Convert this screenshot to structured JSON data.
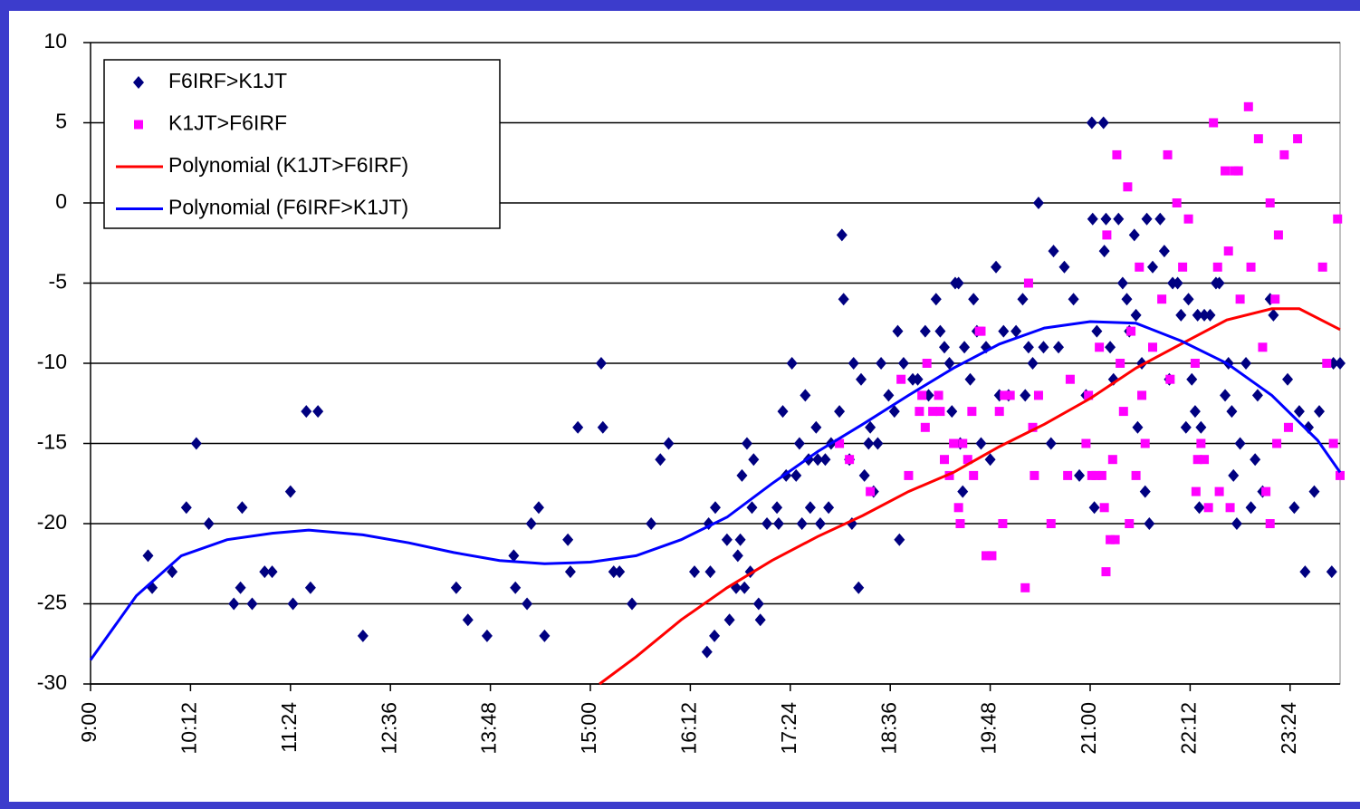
{
  "chart_data": {
    "type": "scatter",
    "xlim": [
      9,
      24
    ],
    "ylim": [
      -30,
      10
    ],
    "xticks": [
      {
        "value": 9,
        "label": "9:00"
      },
      {
        "value": 10.2,
        "label": "10:12"
      },
      {
        "value": 11.4,
        "label": "11:24"
      },
      {
        "value": 12.6,
        "label": "12:36"
      },
      {
        "value": 13.8,
        "label": "13:48"
      },
      {
        "value": 15,
        "label": "15:00"
      },
      {
        "value": 16.2,
        "label": "16:12"
      },
      {
        "value": 17.4,
        "label": "17:24"
      },
      {
        "value": 18.6,
        "label": "18:36"
      },
      {
        "value": 19.8,
        "label": "19:48"
      },
      {
        "value": 21,
        "label": "21:00"
      },
      {
        "value": 22.2,
        "label": "22:12"
      },
      {
        "value": 23.4,
        "label": "23:24"
      }
    ],
    "yticks": [
      -30,
      -25,
      -20,
      -15,
      -10,
      -5,
      0,
      5,
      10
    ],
    "grid": true,
    "legend": "top-left",
    "series": [
      {
        "name": "F6IRF>K1JT",
        "type": "scatter",
        "marker": "diamond",
        "color": "#000080",
        "x": [
          9.69,
          9.74,
          9.98,
          10.15,
          10.27,
          10.42,
          10.72,
          10.8,
          10.82,
          10.94,
          11.09,
          11.18,
          11.4,
          11.43,
          11.59,
          11.64,
          11.73,
          12.27,
          13.39,
          13.53,
          13.76,
          14.08,
          14.1,
          14.24,
          14.29,
          14.38,
          14.45,
          14.73,
          14.76,
          14.85,
          15.13,
          15.15,
          15.28,
          15.35,
          15.5,
          15.73,
          15.84,
          15.94,
          16.25,
          16.4,
          16.42,
          16.44,
          16.49,
          16.5,
          16.64,
          16.67,
          16.75,
          16.77,
          16.8,
          16.82,
          16.85,
          16.88,
          16.92,
          16.94,
          16.96,
          17.02,
          17.04,
          17.12,
          17.24,
          17.26,
          17.31,
          17.35,
          17.42,
          17.47,
          17.51,
          17.54,
          17.58,
          17.62,
          17.64,
          17.71,
          17.73,
          17.76,
          17.82,
          17.86,
          17.89,
          17.99,
          18.02,
          18.04,
          18.11,
          18.14,
          18.16,
          18.22,
          18.25,
          18.29,
          18.34,
          18.36,
          18.4,
          18.45,
          18.49,
          18.58,
          18.65,
          18.69,
          18.71,
          18.76,
          18.87,
          18.93,
          19.02,
          19.06,
          19.15,
          19.2,
          19.25,
          19.31,
          19.34,
          19.38,
          19.42,
          19.44,
          19.47,
          19.49,
          19.56,
          19.6,
          19.64,
          19.69,
          19.75,
          19.8,
          19.87,
          19.91,
          19.96,
          20.02,
          20.11,
          20.19,
          20.22,
          20.26,
          20.31,
          20.38,
          20.44,
          20.53,
          20.56,
          20.62,
          20.69,
          20.8,
          20.87,
          20.95,
          21.02,
          21.03,
          21.05,
          21.08,
          21.16,
          21.17,
          21.19,
          21.24,
          21.28,
          21.34,
          21.39,
          21.44,
          21.47,
          21.53,
          21.55,
          21.57,
          21.62,
          21.66,
          21.68,
          21.71,
          21.75,
          21.84,
          21.89,
          21.95,
          21.99,
          22.05,
          22.09,
          22.15,
          22.18,
          22.22,
          22.26,
          22.29,
          22.31,
          22.33,
          22.37,
          22.44,
          22.51,
          22.55,
          22.62,
          22.66,
          22.7,
          22.72,
          22.76,
          22.8,
          22.87,
          22.93,
          22.98,
          23.01,
          23.07,
          23.16,
          23.2,
          23.37,
          23.45,
          23.51,
          23.58,
          23.62,
          23.69,
          23.75,
          23.9,
          23.92,
          24.0
        ],
        "values": [
          -22,
          -24,
          -23,
          -19,
          -15,
          -20,
          -25,
          -24,
          -19,
          -25,
          -23,
          -23,
          -18,
          -25,
          -13,
          -24,
          -13,
          -27,
          -24,
          -26,
          -27,
          -22,
          -24,
          -25,
          -20,
          -19,
          -27,
          -21,
          -23,
          -14,
          -10,
          -14,
          -23,
          -23,
          -25,
          -20,
          -16,
          -15,
          -23,
          -28,
          -20,
          -23,
          -27,
          -19,
          -21,
          -26,
          -24,
          -22,
          -21,
          -17,
          -24,
          -15,
          -23,
          -19,
          -16,
          -25,
          -26,
          -20,
          -19,
          -20,
          -13,
          -17,
          -10,
          -17,
          -15,
          -20,
          -12,
          -16,
          -19,
          -14,
          -16,
          -20,
          -16,
          -19,
          -15,
          -13,
          -2,
          -6,
          -16,
          -20,
          -10,
          -24,
          -11,
          -17,
          -15,
          -14,
          -18,
          -15,
          -10,
          -12,
          -13,
          -8,
          -21,
          -10,
          -11,
          -11,
          -8,
          -12,
          -6,
          -8,
          -9,
          -10,
          -13,
          -5,
          -5,
          -15,
          -18,
          -9,
          -11,
          -6,
          -8,
          -15,
          -9,
          -16,
          -4,
          -12,
          -8,
          -12,
          -8,
          -6,
          -12,
          -9,
          -10,
          0,
          -9,
          -15,
          -3,
          -9,
          -4,
          -6,
          -17,
          -12,
          5,
          -1,
          -19,
          -8,
          5,
          -3,
          -1,
          -9,
          -11,
          -1,
          -5,
          -6,
          -8,
          -2,
          -7,
          -14,
          -10,
          -18,
          -1,
          -20,
          -4,
          -1,
          -3,
          -11,
          -5,
          -5,
          -7,
          -14,
          -6,
          -11,
          -13,
          -7,
          -19,
          -14,
          -7,
          -7,
          -5,
          -5,
          -12,
          -10,
          -13,
          -17,
          -20,
          -15,
          -10,
          -19,
          -16,
          -12,
          -18,
          -6,
          -7,
          -11,
          -19,
          -13,
          -23,
          -14,
          -18,
          -13,
          -23,
          -10,
          -10
        ]
      },
      {
        "name": "K1JT>F6IRF",
        "type": "scatter",
        "marker": "square",
        "color": "#ff00ff",
        "x": [
          17.99,
          18.11,
          18.36,
          18.73,
          18.82,
          18.95,
          18.98,
          19.02,
          19.04,
          19.11,
          19.18,
          19.2,
          19.25,
          19.31,
          19.36,
          19.42,
          19.44,
          19.47,
          19.53,
          19.58,
          19.6,
          19.67,
          19.69,
          19.75,
          19.82,
          19.91,
          19.95,
          19.97,
          20.04,
          20.22,
          20.26,
          20.31,
          20.33,
          20.38,
          20.53,
          20.73,
          20.76,
          20.95,
          20.98,
          21.02,
          21.07,
          21.11,
          21.14,
          21.17,
          21.19,
          21.2,
          21.24,
          21.27,
          21.3,
          21.32,
          21.36,
          21.4,
          21.45,
          21.47,
          21.49,
          21.55,
          21.59,
          21.62,
          21.66,
          21.75,
          21.86,
          21.93,
          21.96,
          22.04,
          22.11,
          22.18,
          22.26,
          22.27,
          22.29,
          22.33,
          22.37,
          22.42,
          22.48,
          22.53,
          22.55,
          22.62,
          22.66,
          22.68,
          22.73,
          22.78,
          22.8,
          22.9,
          22.93,
          23.02,
          23.07,
          23.11,
          23.16,
          23.16,
          23.22,
          23.24,
          23.26,
          23.33,
          23.38,
          23.49,
          23.79,
          23.84,
          23.92,
          23.97,
          24.0
        ],
        "values": [
          -15,
          -16,
          -18,
          -11,
          -17,
          -13,
          -12,
          -14,
          -10,
          -13,
          -12,
          -13,
          -16,
          -17,
          -15,
          -19,
          -20,
          -15,
          -16,
          -13,
          -17,
          -8,
          -8,
          -22,
          -22,
          -13,
          -20,
          -12,
          -12,
          -24,
          -5,
          -14,
          -17,
          -12,
          -20,
          -17,
          -11,
          -15,
          -12,
          -17,
          -17,
          -9,
          -17,
          -19,
          -23,
          -2,
          -21,
          -16,
          -21,
          3,
          -10,
          -13,
          1,
          -20,
          -8,
          -17,
          -4,
          -12,
          -15,
          -9,
          -6,
          3,
          -11,
          0,
          -4,
          -1,
          -10,
          -18,
          -16,
          -15,
          -16,
          -19,
          5,
          -4,
          -18,
          2,
          -3,
          -19,
          2,
          2,
          -6,
          6,
          -4,
          4,
          -9,
          -18,
          0,
          -20,
          -6,
          -15,
          -2,
          3,
          -14,
          4,
          -4,
          -10,
          -15,
          -1,
          -17
        ]
      },
      {
        "name": "Polynomial (K1JT>F6IRF)",
        "type": "line",
        "color": "#ff0000",
        "x": [
          15.11,
          15.55,
          16.09,
          16.64,
          17.18,
          17.73,
          18.27,
          18.82,
          19.36,
          19.91,
          20.45,
          21.0,
          21.55,
          22.09,
          22.64,
          23.18,
          23.51,
          24.0
        ],
        "values": [
          -30,
          -28.3,
          -26,
          -24,
          -22.3,
          -20.8,
          -19.5,
          -18,
          -16.8,
          -15.2,
          -13.8,
          -12.2,
          -10.3,
          -8.8,
          -7.3,
          -6.6,
          -6.6,
          -7.9
        ]
      },
      {
        "name": "Polynomial (F6IRF>K1JT)",
        "type": "line",
        "color": "#0000ff",
        "x": [
          9.0,
          9.55,
          10.09,
          10.64,
          11.18,
          11.62,
          12.27,
          12.82,
          13.36,
          13.91,
          14.45,
          15.0,
          15.55,
          16.09,
          16.64,
          17.18,
          17.73,
          18.27,
          18.82,
          19.36,
          19.91,
          20.45,
          21.0,
          21.55,
          22.09,
          22.64,
          23.18,
          23.73,
          24.0
        ],
        "values": [
          -28.5,
          -24.5,
          -22,
          -21,
          -20.6,
          -20.4,
          -20.7,
          -21.2,
          -21.8,
          -22.3,
          -22.5,
          -22.4,
          -22,
          -21,
          -19.6,
          -17.5,
          -15.5,
          -13.8,
          -12,
          -10.3,
          -8.8,
          -7.8,
          -7.4,
          -7.5,
          -8.6,
          -10,
          -12,
          -14.8,
          -16.8
        ]
      }
    ]
  }
}
